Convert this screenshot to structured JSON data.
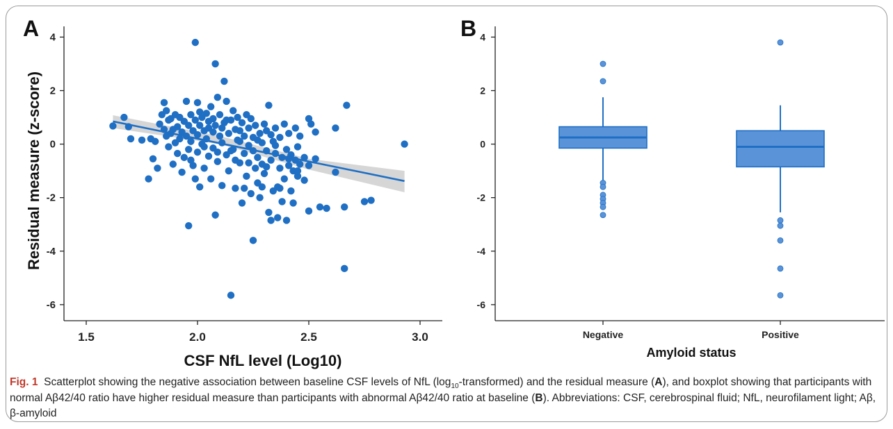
{
  "chart_data": [
    {
      "panel": "A",
      "type": "scatter",
      "xlabel": "CSF NfL level (Log10)",
      "ylabel": "Residual measure (z-score)",
      "xlim": [
        1.4,
        3.1
      ],
      "ylim": [
        -6.6,
        4.4
      ],
      "xticks": [
        "1.5",
        "2.0",
        "2.5",
        "3.0"
      ],
      "yticks": [
        "4",
        "2",
        "0",
        "-2",
        "-4",
        "-6"
      ],
      "grid": false,
      "point_color": "#1f6fc4",
      "fit_line": {
        "x": [
          1.62,
          2.93
        ],
        "y": [
          0.85,
          -1.38
        ],
        "color": "#1f6fc4",
        "band_color": "#cfcfcf"
      },
      "points": [
        [
          1.62,
          0.68
        ],
        [
          1.67,
          1.0
        ],
        [
          1.69,
          0.65
        ],
        [
          1.7,
          0.2
        ],
        [
          1.75,
          0.15
        ],
        [
          1.78,
          -1.3
        ],
        [
          1.79,
          0.2
        ],
        [
          1.8,
          -0.55
        ],
        [
          1.81,
          0.1
        ],
        [
          1.82,
          -0.9
        ],
        [
          1.83,
          0.75
        ],
        [
          1.84,
          1.1
        ],
        [
          1.85,
          1.55
        ],
        [
          1.85,
          0.55
        ],
        [
          1.86,
          0.3
        ],
        [
          1.86,
          1.25
        ],
        [
          1.87,
          0.9
        ],
        [
          1.87,
          -0.1
        ],
        [
          1.88,
          0.4
        ],
        [
          1.88,
          0.95
        ],
        [
          1.89,
          -0.75
        ],
        [
          1.89,
          0.55
        ],
        [
          1.9,
          0.05
        ],
        [
          1.9,
          1.1
        ],
        [
          1.91,
          0.65
        ],
        [
          1.91,
          -0.35
        ],
        [
          1.92,
          0.2
        ],
        [
          1.92,
          1.0
        ],
        [
          1.93,
          -1.05
        ],
        [
          1.93,
          0.45
        ],
        [
          1.94,
          0.85
        ],
        [
          1.94,
          -0.5
        ],
        [
          1.95,
          1.6
        ],
        [
          1.95,
          0.3
        ],
        [
          1.96,
          -0.2
        ],
        [
          1.96,
          0.7
        ],
        [
          1.96,
          -3.05
        ],
        [
          1.97,
          1.1
        ],
        [
          1.97,
          0.1
        ],
        [
          1.98,
          0.5
        ],
        [
          1.98,
          -0.8
        ],
        [
          1.99,
          3.8
        ],
        [
          1.99,
          0.9
        ],
        [
          1.99,
          -1.3
        ],
        [
          2.0,
          0.35
        ],
        [
          2.0,
          1.55
        ],
        [
          2.0,
          -0.3
        ],
        [
          2.01,
          0.7
        ],
        [
          2.01,
          -1.6
        ],
        [
          2.02,
          0.0
        ],
        [
          2.02,
          1.0
        ],
        [
          2.03,
          0.5
        ],
        [
          2.03,
          -0.9
        ],
        [
          2.04,
          1.15
        ],
        [
          2.04,
          0.2
        ],
        [
          2.05,
          -0.45
        ],
        [
          2.05,
          0.85
        ],
        [
          2.06,
          1.4
        ],
        [
          2.06,
          -1.3
        ],
        [
          2.07,
          0.45
        ],
        [
          2.07,
          -0.15
        ],
        [
          2.08,
          3.0
        ],
        [
          2.08,
          0.7
        ],
        [
          2.08,
          -2.65
        ],
        [
          2.09,
          1.75
        ],
        [
          2.09,
          -0.65
        ],
        [
          2.1,
          0.3
        ],
        [
          2.1,
          1.1
        ],
        [
          2.11,
          -1.55
        ],
        [
          2.11,
          0.05
        ],
        [
          2.12,
          2.35
        ],
        [
          2.12,
          0.8
        ],
        [
          2.13,
          -0.4
        ],
        [
          2.13,
          1.6
        ],
        [
          2.14,
          0.4
        ],
        [
          2.14,
          -1.0
        ],
        [
          2.15,
          -5.65
        ],
        [
          2.15,
          0.9
        ],
        [
          2.16,
          -0.2
        ],
        [
          2.16,
          1.25
        ],
        [
          2.17,
          0.55
        ],
        [
          2.17,
          -1.65
        ],
        [
          2.18,
          0.15
        ],
        [
          2.18,
          1.0
        ],
        [
          2.19,
          -0.7
        ],
        [
          2.19,
          0.5
        ],
        [
          2.2,
          -2.2
        ],
        [
          2.2,
          0.8
        ],
        [
          2.21,
          -0.35
        ],
        [
          2.21,
          0.3
        ],
        [
          2.22,
          1.1
        ],
        [
          2.22,
          -1.2
        ],
        [
          2.23,
          0.6
        ],
        [
          2.23,
          -0.05
        ],
        [
          2.24,
          -1.85
        ],
        [
          2.24,
          0.95
        ],
        [
          2.25,
          -3.6
        ],
        [
          2.25,
          0.25
        ],
        [
          2.26,
          -0.9
        ],
        [
          2.26,
          0.7
        ],
        [
          2.27,
          -0.5
        ],
        [
          2.27,
          -1.45
        ],
        [
          2.28,
          0.4
        ],
        [
          2.28,
          -2.0
        ],
        [
          2.29,
          0.05
        ],
        [
          2.29,
          -0.75
        ],
        [
          2.3,
          0.75
        ],
        [
          2.3,
          -1.1
        ],
        [
          2.31,
          -0.25
        ],
        [
          2.31,
          0.5
        ],
        [
          2.32,
          -2.55
        ],
        [
          2.32,
          1.45
        ],
        [
          2.33,
          -0.6
        ],
        [
          2.33,
          -2.85
        ],
        [
          2.34,
          0.1
        ],
        [
          2.34,
          -1.75
        ],
        [
          2.35,
          -0.35
        ],
        [
          2.35,
          0.6
        ],
        [
          2.36,
          -1.6
        ],
        [
          2.36,
          -2.75
        ],
        [
          2.37,
          -0.9
        ],
        [
          2.37,
          0.25
        ],
        [
          2.38,
          -2.15
        ],
        [
          2.38,
          -0.5
        ],
        [
          2.39,
          0.75
        ],
        [
          2.39,
          -1.3
        ],
        [
          2.4,
          -2.85
        ],
        [
          2.4,
          -0.2
        ],
        [
          2.41,
          -0.8
        ],
        [
          2.41,
          0.4
        ],
        [
          2.42,
          -1.75
        ],
        [
          2.42,
          -0.4
        ],
        [
          2.43,
          -1.0
        ],
        [
          2.43,
          -2.2
        ],
        [
          2.44,
          0.6
        ],
        [
          2.44,
          -0.6
        ],
        [
          2.45,
          -1.2
        ],
        [
          2.45,
          -0.1
        ],
        [
          2.46,
          -0.75
        ],
        [
          2.46,
          0.3
        ],
        [
          2.48,
          -0.5
        ],
        [
          2.48,
          -1.35
        ],
        [
          2.5,
          -2.5
        ],
        [
          2.5,
          0.95
        ],
        [
          2.5,
          -0.8
        ],
        [
          2.51,
          0.75
        ],
        [
          2.53,
          0.45
        ],
        [
          2.53,
          -0.55
        ],
        [
          2.55,
          -2.35
        ],
        [
          2.58,
          -2.4
        ],
        [
          2.62,
          -1.05
        ],
        [
          2.62,
          0.6
        ],
        [
          2.66,
          -2.35
        ],
        [
          2.66,
          -4.65
        ],
        [
          2.67,
          1.45
        ],
        [
          2.75,
          -2.15
        ],
        [
          2.78,
          -2.1
        ],
        [
          2.93,
          0.0
        ],
        [
          1.97,
          -0.6
        ],
        [
          2.03,
          -0.1
        ],
        [
          2.07,
          0.95
        ],
        [
          2.11,
          0.6
        ],
        [
          2.15,
          -0.25
        ],
        [
          2.19,
          0.1
        ],
        [
          2.23,
          -0.7
        ],
        [
          2.27,
          0.15
        ],
        [
          2.31,
          -0.85
        ],
        [
          2.35,
          -0.05
        ],
        [
          2.01,
          1.2
        ],
        [
          2.05,
          0.6
        ],
        [
          2.09,
          -0.3
        ],
        [
          2.13,
          0.9
        ],
        [
          2.17,
          -0.6
        ],
        [
          2.21,
          -1.65
        ],
        [
          2.25,
          -0.25
        ],
        [
          2.29,
          -1.6
        ],
        [
          2.33,
          0.35
        ],
        [
          2.37,
          -1.65
        ],
        [
          2.41,
          -0.55
        ],
        [
          2.45,
          -1.0
        ]
      ]
    },
    {
      "panel": "B",
      "type": "box",
      "xlabel": "Amyloid status",
      "ylabel": "",
      "ylim": [
        -6.6,
        4.4
      ],
      "yticks": [
        "4",
        "2",
        "0",
        "-2",
        "-4",
        "-6"
      ],
      "categories": [
        "Negative",
        "Positive"
      ],
      "fill_color": "#5a93d8",
      "line_color": "#1f6fc4",
      "boxes": [
        {
          "name": "Negative",
          "q1": -0.15,
          "median": 0.25,
          "q3": 0.65,
          "whisker_low": -1.4,
          "whisker_high": 1.75,
          "outliers": [
            3.0,
            2.35,
            -1.45,
            -1.6,
            -1.9,
            -2.05,
            -2.2,
            -2.35,
            -2.65
          ]
        },
        {
          "name": "Positive",
          "q1": -0.85,
          "median": -0.1,
          "q3": 0.5,
          "whisker_low": -2.55,
          "whisker_high": 1.45,
          "outliers": [
            3.8,
            -2.85,
            -3.05,
            -3.6,
            -4.65,
            -5.65
          ]
        }
      ]
    }
  ],
  "panel_labels": {
    "a": "A",
    "b": "B"
  },
  "caption": {
    "label": "Fig. 1",
    "t1": "Scatterplot showing the negative association between baseline CSF levels of NfL (log",
    "sub": "10",
    "t2": "-transformed) and the residual measure (",
    "bA": "A",
    "t3": "), and boxplot showing that participants with normal Aβ42/40 ratio have higher residual measure than participants with abnormal Aβ42/40 ratio at baseline (",
    "bB": "B",
    "t4": "). Abbreviations: CSF, cerebrospinal fluid; NfL, neurofilament light; Aβ, β-amyloid"
  }
}
